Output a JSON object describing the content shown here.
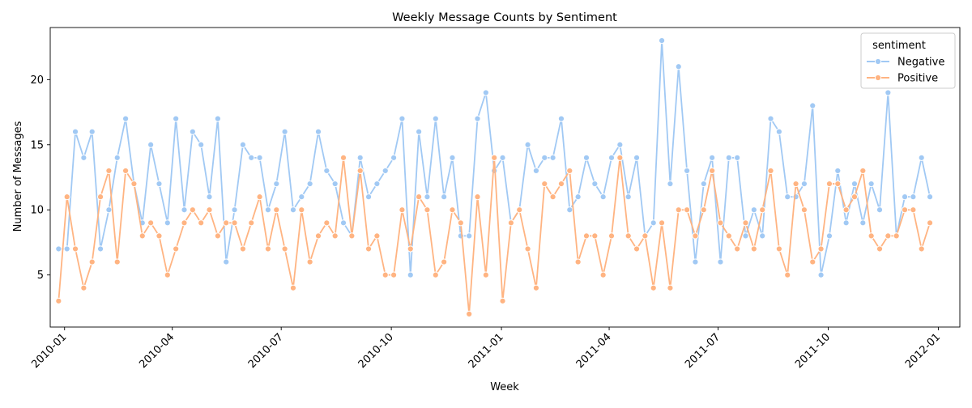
{
  "chart_data": {
    "type": "line",
    "title": "Weekly Message Counts by Sentiment",
    "xlabel": "Week",
    "ylabel": "Number of Messages",
    "x_start": "2009-12-27",
    "x_interval_days": 7,
    "xlim": [
      "2009-12-20",
      "2012-01-19"
    ],
    "ylim": [
      1.0,
      24.0
    ],
    "x_ticks": [
      "2010-01",
      "2010-04",
      "2010-07",
      "2010-10",
      "2011-01",
      "2011-04",
      "2011-07",
      "2011-10",
      "2012-01"
    ],
    "x_tick_dates": [
      "2010-01-01",
      "2010-04-01",
      "2010-07-01",
      "2010-10-01",
      "2011-01-01",
      "2011-04-01",
      "2011-07-01",
      "2011-10-01",
      "2012-01-01"
    ],
    "y_ticks": [
      5,
      10,
      15,
      20
    ],
    "grid": false,
    "legend": {
      "title": "sentiment",
      "placement": "top-right"
    },
    "series": [
      {
        "name": "Negative",
        "color": "#a1c9f4",
        "values": [
          7,
          7,
          16,
          14,
          16,
          7,
          10,
          14,
          17,
          12,
          9,
          15,
          12,
          9,
          17,
          10,
          16,
          15,
          11,
          17,
          6,
          10,
          15,
          14,
          14,
          10,
          12,
          16,
          10,
          11,
          12,
          16,
          13,
          12,
          9,
          8,
          14,
          11,
          12,
          13,
          14,
          17,
          5,
          16,
          11,
          17,
          11,
          14,
          8,
          8,
          17,
          19,
          13,
          14,
          9,
          10,
          15,
          13,
          14,
          14,
          17,
          10,
          11,
          14,
          12,
          11,
          14,
          15,
          11,
          14,
          8,
          9,
          23,
          12,
          21,
          13,
          6,
          12,
          14,
          6,
          14,
          14,
          8,
          10,
          8,
          17,
          16,
          11,
          11,
          12,
          18,
          5,
          8,
          13,
          9,
          12,
          9,
          12,
          10,
          19,
          8,
          11,
          11,
          14,
          11
        ]
      },
      {
        "name": "Positive",
        "color": "#ffb482",
        "values": [
          3,
          11,
          7,
          4,
          6,
          11,
          13,
          6,
          13,
          12,
          8,
          9,
          8,
          5,
          7,
          9,
          10,
          9,
          10,
          8,
          9,
          9,
          7,
          9,
          11,
          7,
          10,
          7,
          4,
          10,
          6,
          8,
          9,
          8,
          14,
          8,
          13,
          7,
          8,
          5,
          5,
          10,
          7,
          11,
          10,
          5,
          6,
          10,
          9,
          2,
          11,
          5,
          14,
          3,
          9,
          10,
          7,
          4,
          12,
          11,
          12,
          13,
          6,
          8,
          8,
          5,
          8,
          14,
          8,
          7,
          8,
          4,
          9,
          4,
          10,
          10,
          8,
          10,
          13,
          9,
          8,
          7,
          9,
          7,
          10,
          13,
          7,
          5,
          12,
          10,
          6,
          7,
          12,
          12,
          10,
          11,
          13,
          8,
          7,
          8,
          8,
          10,
          10,
          7,
          9
        ]
      }
    ]
  }
}
